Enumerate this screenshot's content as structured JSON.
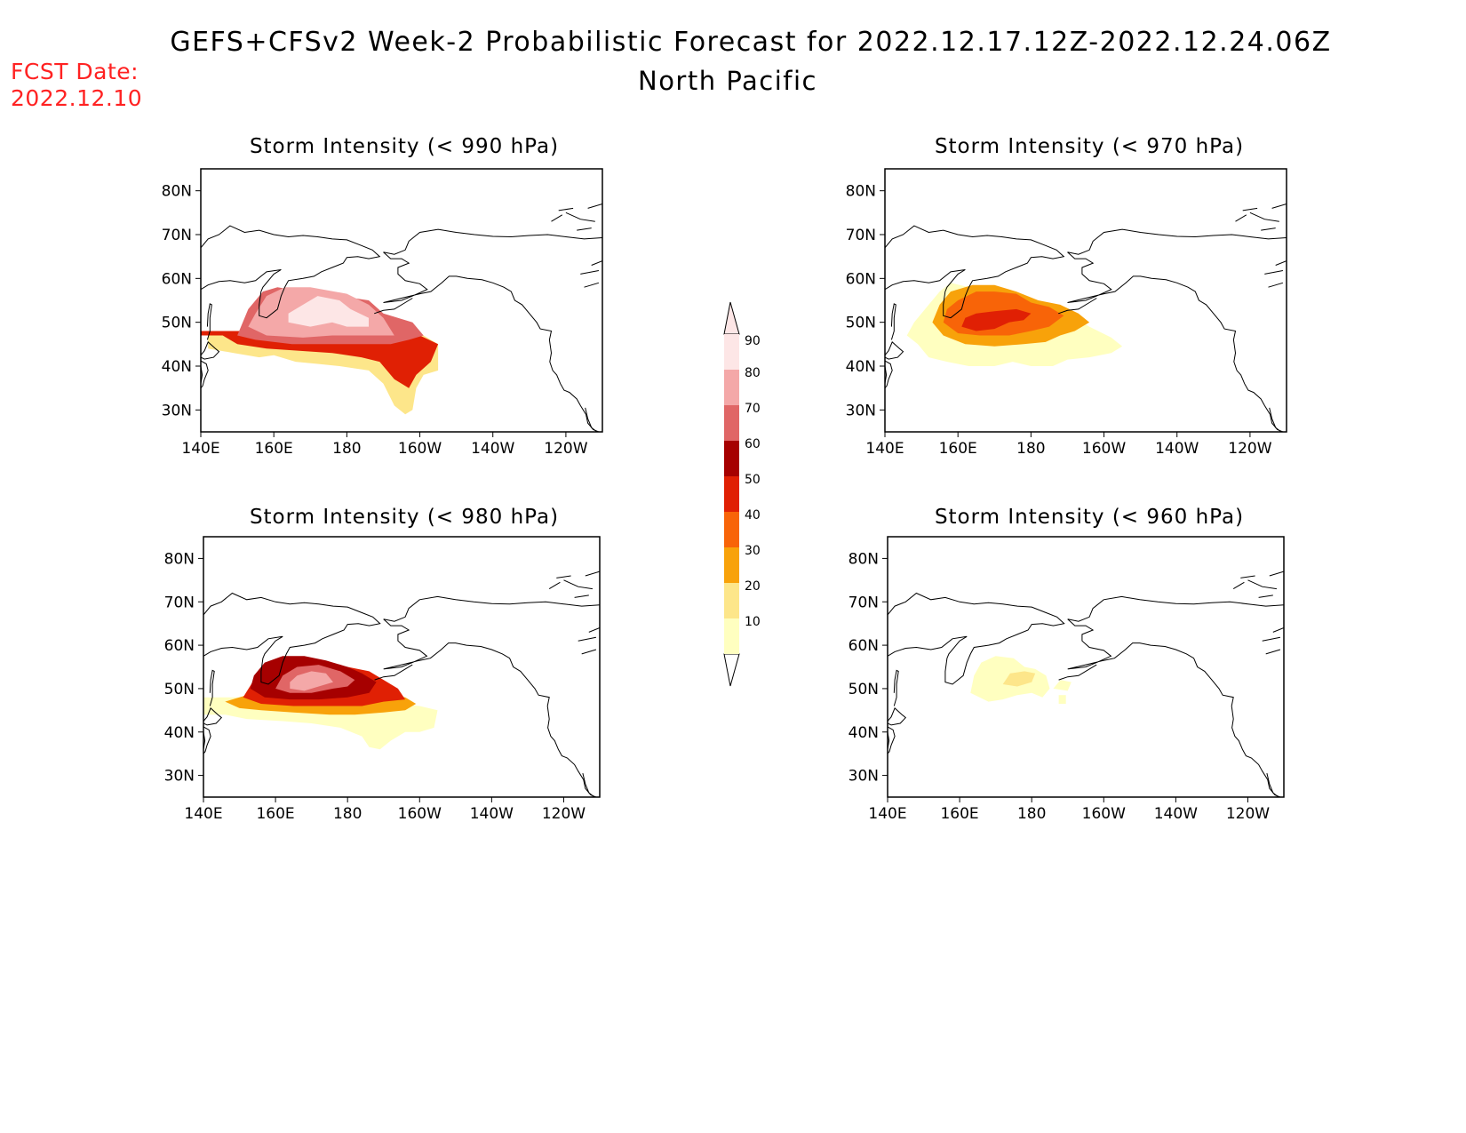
{
  "title": "GEFS+CFSv2 Week-2 Probabilistic Forecast for 2022.12.17.12Z-2022.12.24.06Z",
  "region": "North Pacific",
  "fcst_label": "FCST Date:",
  "fcst_date": "2022.12.10",
  "colors": {
    "c10": "#ffffc0",
    "c20": "#fde68a",
    "c30": "#f8a20a",
    "c40": "#f86408",
    "c50": "#e02004",
    "c60": "#a60000",
    "c70": "#e06666",
    "c80": "#f4a8a8",
    "c90": "#fde6e6",
    "coast": "#000000"
  },
  "colorbar": {
    "levels": [
      "10",
      "20",
      "30",
      "40",
      "50",
      "60",
      "70",
      "80",
      "90"
    ]
  },
  "x_ticks": [
    "140E",
    "160E",
    "180",
    "160W",
    "140W",
    "120W"
  ],
  "y_ticks": [
    "80N",
    "70N",
    "60N",
    "50N",
    "40N",
    "30N"
  ],
  "panels": [
    {
      "id": "p990",
      "title": "Storm Intensity (< 990 hPa)"
    },
    {
      "id": "p970",
      "title": "Storm Intensity (< 970 hPa)"
    },
    {
      "id": "p980",
      "title": "Storm Intensity (< 980 hPa)"
    },
    {
      "id": "p960",
      "title": "Storm Intensity (< 960 hPa)"
    }
  ]
}
